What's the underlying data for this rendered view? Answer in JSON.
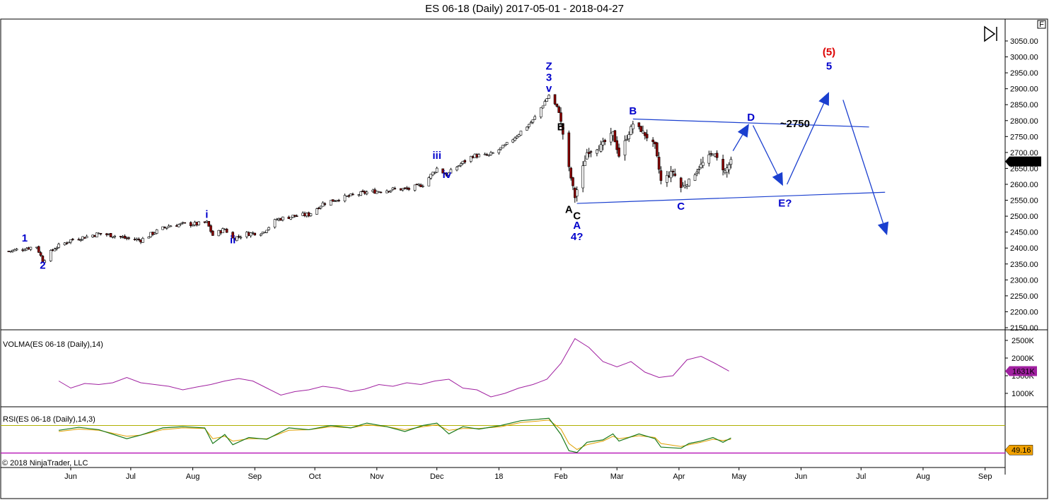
{
  "title": "ES 06-18 (Daily)  2017-05-01 - 2018-04-27",
  "colors": {
    "up_candle": "#ffffff",
    "down_candle": "#8b0000",
    "volma": "#a020a0",
    "rsi": "#1a7a1a",
    "rsi_avg": "#e0a000",
    "rsi_upper": "#b0b000",
    "rsi_lower": "#b000b0",
    "wave_blue": "#0000cc",
    "wave_black": "#000000",
    "wave_red": "#dd0000",
    "arrow": "#1a3fcf"
  },
  "copyright": "© 2018 NinjaTrader, LLC",
  "top_right_box": "F",
  "chart_data": [
    {
      "type": "candlestick",
      "symbol": "ES 06-18 (Daily)",
      "date_range": [
        "2017-05-01",
        "2018-04-27"
      ],
      "ylim": [
        2130,
        3090
      ],
      "y_ticks": [
        "3050.00",
        "3000.00",
        "2950.00",
        "2900.00",
        "2850.00",
        "2800.00",
        "2750.00",
        "2700.00",
        "2650.00",
        "2600.00",
        "2550.00",
        "2500.00",
        "2450.00",
        "2400.00",
        "2350.00",
        "2300.00",
        "2250.00",
        "2200.00",
        "2150.00"
      ],
      "last_price_label": "2671.75",
      "x_months": [
        "Jun",
        "Jul",
        "Aug",
        "Sep",
        "Oct",
        "Nov",
        "Dec",
        "18",
        "Feb",
        "Mar",
        "Apr",
        "May",
        "Jun",
        "Jul",
        "Aug",
        "Sep"
      ],
      "close_path": [
        [
          "2017-05-01",
          2390
        ],
        [
          "2017-05-10",
          2400
        ],
        [
          "2017-05-15",
          2405
        ],
        [
          "2017-05-18",
          2360
        ],
        [
          "2017-05-24",
          2400
        ],
        [
          "2017-06-01",
          2425
        ],
        [
          "2017-06-08",
          2435
        ],
        [
          "2017-06-15",
          2445
        ],
        [
          "2017-06-22",
          2440
        ],
        [
          "2017-06-29",
          2430
        ],
        [
          "2017-07-06",
          2425
        ],
        [
          "2017-07-13",
          2450
        ],
        [
          "2017-07-20",
          2470
        ],
        [
          "2017-07-27",
          2475
        ],
        [
          "2017-08-03",
          2475
        ],
        [
          "2017-08-08",
          2480
        ],
        [
          "2017-08-11",
          2440
        ],
        [
          "2017-08-17",
          2460
        ],
        [
          "2017-08-21",
          2430
        ],
        [
          "2017-08-28",
          2445
        ],
        [
          "2017-09-05",
          2450
        ],
        [
          "2017-09-12",
          2490
        ],
        [
          "2017-09-20",
          2500
        ],
        [
          "2017-09-28",
          2505
        ],
        [
          "2017-10-05",
          2540
        ],
        [
          "2017-10-13",
          2555
        ],
        [
          "2017-10-20",
          2565
        ],
        [
          "2017-10-27",
          2575
        ],
        [
          "2017-11-03",
          2580
        ],
        [
          "2017-11-10",
          2585
        ],
        [
          "2017-11-17",
          2585
        ],
        [
          "2017-11-24",
          2600
        ],
        [
          "2017-12-01",
          2650
        ],
        [
          "2017-12-06",
          2630
        ],
        [
          "2017-12-12",
          2660
        ],
        [
          "2017-12-19",
          2690
        ],
        [
          "2017-12-27",
          2690
        ],
        [
          "2018-01-04",
          2720
        ],
        [
          "2018-01-11",
          2760
        ],
        [
          "2018-01-18",
          2800
        ],
        [
          "2018-01-26",
          2880
        ],
        [
          "2018-01-31",
          2830
        ],
        [
          "2018-02-05",
          2650
        ],
        [
          "2018-02-08",
          2560
        ],
        [
          "2018-02-14",
          2700
        ],
        [
          "2018-02-21",
          2720
        ],
        [
          "2018-02-27",
          2760
        ],
        [
          "2018-03-02",
          2690
        ],
        [
          "2018-03-09",
          2790
        ],
        [
          "2018-03-13",
          2770
        ],
        [
          "2018-03-20",
          2720
        ],
        [
          "2018-03-23",
          2610
        ],
        [
          "2018-03-29",
          2640
        ],
        [
          "2018-04-02",
          2590
        ],
        [
          "2018-04-06",
          2610
        ],
        [
          "2018-04-12",
          2660
        ],
        [
          "2018-04-18",
          2700
        ],
        [
          "2018-04-24",
          2640
        ],
        [
          "2018-04-27",
          2671.75
        ]
      ],
      "wave_labels": [
        {
          "text": "1",
          "date": "2017-05-09",
          "price": 2420,
          "color": "blue"
        },
        {
          "text": "2",
          "date": "2017-05-18",
          "price": 2335,
          "color": "blue"
        },
        {
          "text": "i",
          "date": "2017-08-08",
          "price": 2495,
          "color": "blue"
        },
        {
          "text": "ii",
          "date": "2017-08-21",
          "price": 2415,
          "color": "blue"
        },
        {
          "text": "iii",
          "date": "2017-12-01",
          "price": 2680,
          "color": "blue"
        },
        {
          "text": "iv",
          "date": "2017-12-06",
          "price": 2620,
          "color": "blue"
        },
        {
          "text": "Z",
          "date": "2018-01-26",
          "price": 2960,
          "color": "blue"
        },
        {
          "text": "3",
          "date": "2018-01-26",
          "price": 2925,
          "color": "blue"
        },
        {
          "text": "v",
          "date": "2018-01-26",
          "price": 2890,
          "color": "blue"
        },
        {
          "text": "B",
          "date": "2018-02-01",
          "price": 2770,
          "color": "black"
        },
        {
          "text": "A",
          "date": "2018-02-05",
          "price": 2510,
          "color": "black"
        },
        {
          "text": "C",
          "date": "2018-02-09",
          "price": 2490,
          "color": "black"
        },
        {
          "text": "A",
          "date": "2018-02-09",
          "price": 2460,
          "color": "blue"
        },
        {
          "text": "4?",
          "date": "2018-02-09",
          "price": 2425,
          "color": "blue"
        },
        {
          "text": "B",
          "date": "2018-03-09",
          "price": 2820,
          "color": "blue"
        },
        {
          "text": "C",
          "date": "2018-04-02",
          "price": 2520,
          "color": "blue"
        },
        {
          "text": "D",
          "date": "2018-05-07",
          "price": 2800,
          "color": "blue"
        },
        {
          "text": "~2750",
          "date": "2018-05-29",
          "price": 2780,
          "color": "black"
        },
        {
          "text": "E?",
          "date": "2018-05-24",
          "price": 2530,
          "color": "blue"
        },
        {
          "text": "(5)",
          "date": "2018-06-15",
          "price": 3005,
          "color": "red"
        },
        {
          "text": "5",
          "date": "2018-06-15",
          "price": 2960,
          "color": "blue"
        }
      ],
      "trendlines": [
        {
          "from": [
            "2018-03-09",
            2805
          ],
          "to": [
            "2018-07-05",
            2780
          ]
        },
        {
          "from": [
            "2018-02-09",
            2540
          ],
          "to": [
            "2018-07-13",
            2575
          ]
        }
      ],
      "projection_arrows": [
        {
          "from": [
            "2018-04-28",
            2705
          ],
          "to": [
            "2018-05-06",
            2790
          ]
        },
        {
          "from": [
            "2018-05-08",
            2785
          ],
          "to": [
            "2018-05-23",
            2595
          ]
        },
        {
          "from": [
            "2018-05-25",
            2600
          ],
          "to": [
            "2018-06-15",
            2890
          ]
        },
        {
          "from": [
            "2018-06-22",
            2865
          ],
          "to": [
            "2018-07-14",
            2440
          ]
        }
      ]
    },
    {
      "type": "line",
      "title": "VOLMA(ES 06-18 (Daily),14)",
      "ylim": [
        700,
        2700
      ],
      "y_ticks": [
        "2500K",
        "2000K",
        "1500K",
        "1000K"
      ],
      "last_value_label": "1631K",
      "points": [
        [
          "2017-05-26",
          1350
        ],
        [
          "2017-06-01",
          1150
        ],
        [
          "2017-06-08",
          1280
        ],
        [
          "2017-06-15",
          1250
        ],
        [
          "2017-06-22",
          1300
        ],
        [
          "2017-06-29",
          1450
        ],
        [
          "2017-07-06",
          1300
        ],
        [
          "2017-07-13",
          1250
        ],
        [
          "2017-07-20",
          1200
        ],
        [
          "2017-07-27",
          1100
        ],
        [
          "2017-08-03",
          1180
        ],
        [
          "2017-08-10",
          1250
        ],
        [
          "2017-08-17",
          1350
        ],
        [
          "2017-08-24",
          1420
        ],
        [
          "2017-08-31",
          1350
        ],
        [
          "2017-09-07",
          1150
        ],
        [
          "2017-09-14",
          950
        ],
        [
          "2017-09-21",
          1050
        ],
        [
          "2017-09-28",
          1100
        ],
        [
          "2017-10-05",
          1200
        ],
        [
          "2017-10-12",
          1150
        ],
        [
          "2017-10-19",
          1050
        ],
        [
          "2017-10-26",
          1120
        ],
        [
          "2017-11-02",
          1250
        ],
        [
          "2017-11-09",
          1200
        ],
        [
          "2017-11-16",
          1300
        ],
        [
          "2017-11-23",
          1250
        ],
        [
          "2017-11-30",
          1350
        ],
        [
          "2017-12-07",
          1400
        ],
        [
          "2017-12-14",
          1150
        ],
        [
          "2017-12-21",
          1100
        ],
        [
          "2017-12-28",
          900
        ],
        [
          "2018-01-04",
          1000
        ],
        [
          "2018-01-11",
          1150
        ],
        [
          "2018-01-18",
          1250
        ],
        [
          "2018-01-25",
          1400
        ],
        [
          "2018-02-01",
          1850
        ],
        [
          "2018-02-08",
          2550
        ],
        [
          "2018-02-15",
          2300
        ],
        [
          "2018-02-22",
          1900
        ],
        [
          "2018-03-01",
          1750
        ],
        [
          "2018-03-08",
          1900
        ],
        [
          "2018-03-15",
          1600
        ],
        [
          "2018-03-22",
          1450
        ],
        [
          "2018-03-29",
          1500
        ],
        [
          "2018-04-05",
          1950
        ],
        [
          "2018-04-12",
          2050
        ],
        [
          "2018-04-19",
          1850
        ],
        [
          "2018-04-26",
          1631
        ]
      ]
    },
    {
      "type": "line",
      "title": "RSI(ES 06-18 (Daily),14,3)",
      "ylim": [
        0,
        100
      ],
      "upper_level": 70,
      "lower_level": 30,
      "last_value_label": "49.16",
      "series": [
        {
          "points": [
            [
              "2017-05-26",
              62
            ],
            [
              "2017-06-05",
              67
            ],
            [
              "2017-06-15",
              63
            ],
            [
              "2017-06-29",
              48
            ],
            [
              "2017-07-06",
              54
            ],
            [
              "2017-07-17",
              66
            ],
            [
              "2017-07-27",
              68
            ],
            [
              "2017-08-07",
              66
            ],
            [
              "2017-08-11",
              40
            ],
            [
              "2017-08-17",
              55
            ],
            [
              "2017-08-21",
              38
            ],
            [
              "2017-08-29",
              50
            ],
            [
              "2017-09-07",
              47
            ],
            [
              "2017-09-18",
              66
            ],
            [
              "2017-09-28",
              63
            ],
            [
              "2017-10-09",
              70
            ],
            [
              "2017-10-19",
              66
            ],
            [
              "2017-10-27",
              74
            ],
            [
              "2017-11-06",
              68
            ],
            [
              "2017-11-15",
              60
            ],
            [
              "2017-11-24",
              70
            ],
            [
              "2017-12-01",
              74
            ],
            [
              "2017-12-07",
              56
            ],
            [
              "2017-12-14",
              68
            ],
            [
              "2017-12-22",
              64
            ],
            [
              "2018-01-02",
              70
            ],
            [
              "2018-01-12",
              78
            ],
            [
              "2018-01-26",
              82
            ],
            [
              "2018-02-01",
              55
            ],
            [
              "2018-02-05",
              28
            ],
            [
              "2018-02-09",
              25
            ],
            [
              "2018-02-14",
              42
            ],
            [
              "2018-02-22",
              46
            ],
            [
              "2018-02-27",
              56
            ],
            [
              "2018-03-02",
              44
            ],
            [
              "2018-03-12",
              56
            ],
            [
              "2018-03-20",
              48
            ],
            [
              "2018-03-23",
              34
            ],
            [
              "2018-04-02",
              32
            ],
            [
              "2018-04-06",
              40
            ],
            [
              "2018-04-12",
              44
            ],
            [
              "2018-04-18",
              50
            ],
            [
              "2018-04-23",
              42
            ],
            [
              "2018-04-27",
              49.16
            ]
          ]
        },
        {
          "points": [
            [
              "2017-05-26",
              60
            ],
            [
              "2017-06-05",
              64
            ],
            [
              "2017-06-15",
              62
            ],
            [
              "2017-06-29",
              52
            ],
            [
              "2017-07-06",
              54
            ],
            [
              "2017-07-17",
              63
            ],
            [
              "2017-07-27",
              66
            ],
            [
              "2017-08-07",
              65
            ],
            [
              "2017-08-11",
              48
            ],
            [
              "2017-08-17",
              52
            ],
            [
              "2017-08-21",
              44
            ],
            [
              "2017-08-29",
              48
            ],
            [
              "2017-09-07",
              48
            ],
            [
              "2017-09-18",
              62
            ],
            [
              "2017-09-28",
              63
            ],
            [
              "2017-10-09",
              68
            ],
            [
              "2017-10-19",
              66
            ],
            [
              "2017-10-27",
              71
            ],
            [
              "2017-11-06",
              68
            ],
            [
              "2017-11-15",
              63
            ],
            [
              "2017-11-24",
              68
            ],
            [
              "2017-12-01",
              71
            ],
            [
              "2017-12-07",
              62
            ],
            [
              "2017-12-14",
              65
            ],
            [
              "2017-12-22",
              65
            ],
            [
              "2018-01-02",
              68
            ],
            [
              "2018-01-12",
              75
            ],
            [
              "2018-01-26",
              79
            ],
            [
              "2018-02-01",
              64
            ],
            [
              "2018-02-05",
              40
            ],
            [
              "2018-02-09",
              30
            ],
            [
              "2018-02-14",
              38
            ],
            [
              "2018-02-22",
              44
            ],
            [
              "2018-02-27",
              52
            ],
            [
              "2018-03-02",
              48
            ],
            [
              "2018-03-12",
              53
            ],
            [
              "2018-03-20",
              50
            ],
            [
              "2018-03-23",
              40
            ],
            [
              "2018-04-02",
              35
            ],
            [
              "2018-04-06",
              38
            ],
            [
              "2018-04-12",
              42
            ],
            [
              "2018-04-18",
              47
            ],
            [
              "2018-04-23",
              45
            ],
            [
              "2018-04-27",
              47
            ]
          ]
        }
      ]
    }
  ]
}
